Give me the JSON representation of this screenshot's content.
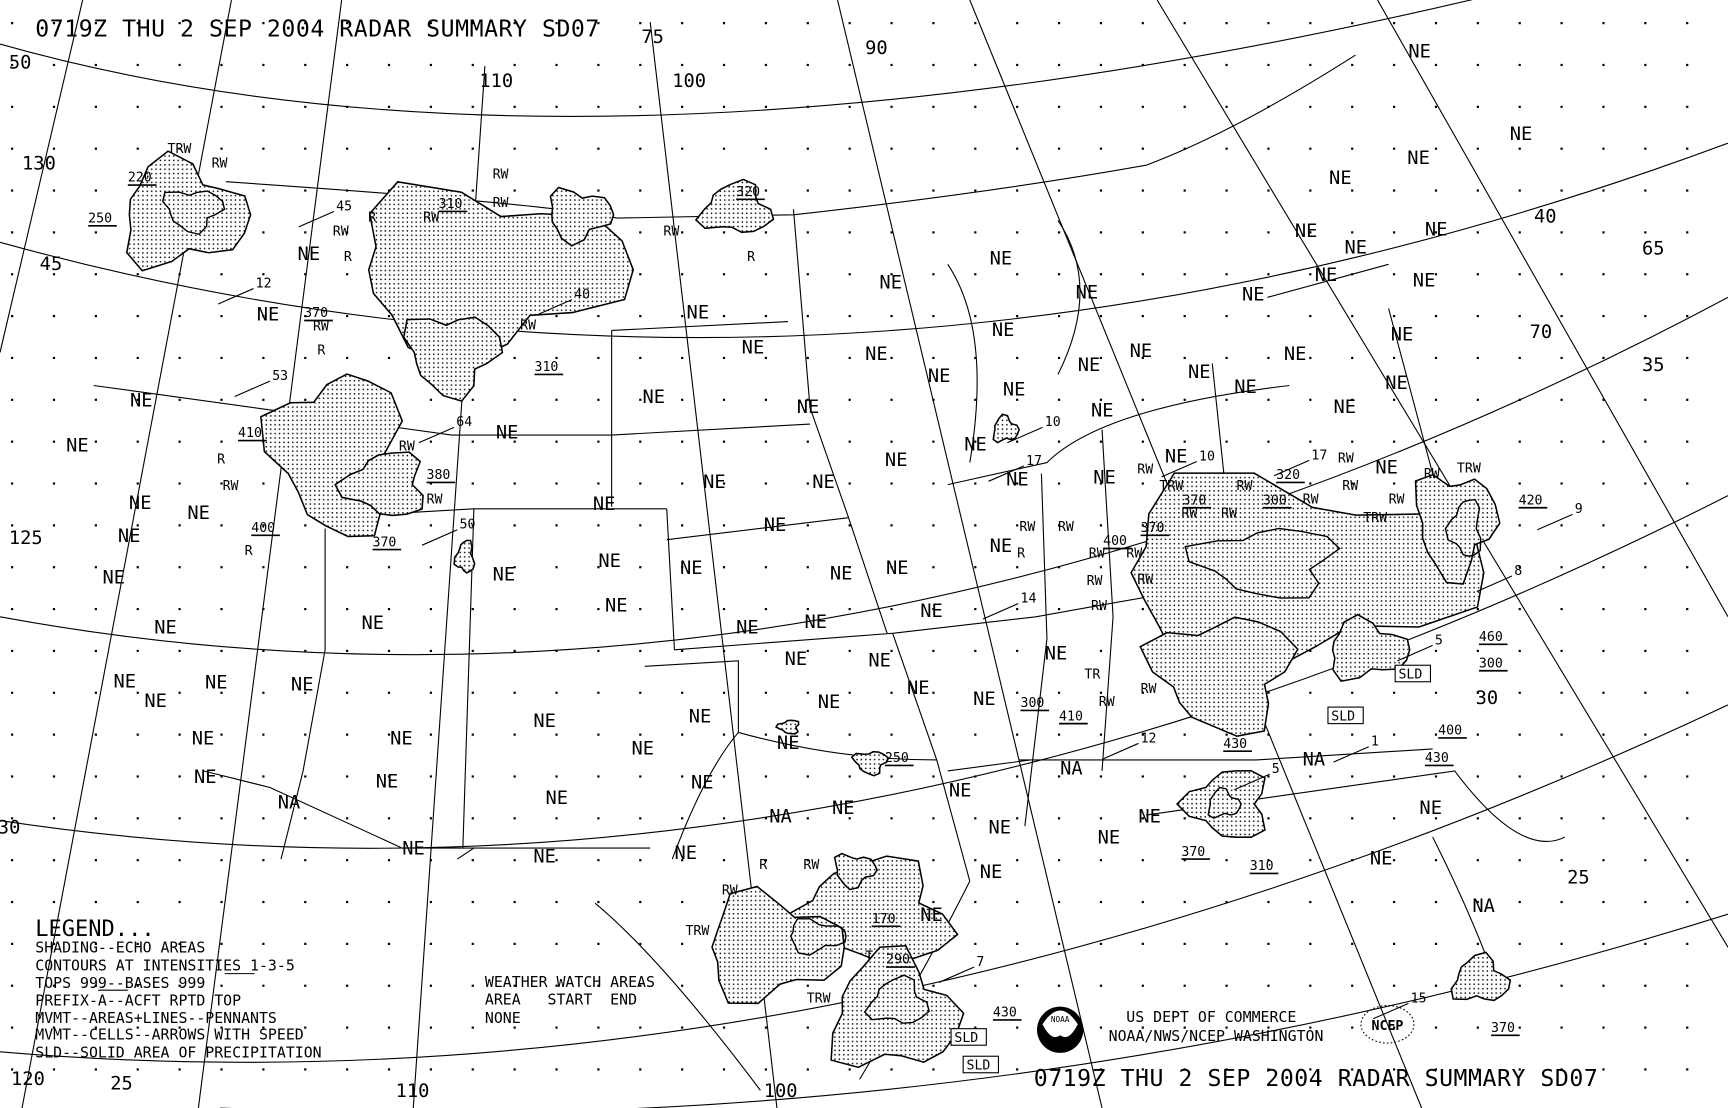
{
  "title": "0719Z THU  2 SEP 2004 RADAR SUMMARY SD07",
  "legend": {
    "heading": "LEGEND...",
    "lines": [
      "SHADING--ECHO AREAS",
      "CONTOURS AT INTENSITIES 1-3-5",
      "TOPS 999--BASES 999",
      "PREFIX-A--ACFT RPTD TOP",
      "MVMT--AREAS+LINES--PENNANTS",
      "MVMT--CELLS--ARROWS WITH SPEED",
      "SLD--SOLID AREA OF PRECIPITATION"
    ]
  },
  "watch": {
    "heading": "WEATHER WATCH AREAS",
    "columns": "AREA   START  END",
    "value": "NONE"
  },
  "agency": {
    "line1": "US DEPT OF COMMERCE",
    "line2": "NOAA/NWS/NCEP WASHINGTON"
  },
  "logos": {
    "noaa": "NOAA",
    "ncep": "NCEP"
  },
  "colors": {
    "ink": "#000000",
    "background": "#ffffff"
  },
  "map": {
    "state_labels": [
      "NE",
      "NE",
      "NE",
      "NE",
      "NE",
      "NE",
      "NE",
      "NE",
      "NE",
      "NE",
      "NE",
      "NE",
      "NE",
      "NE",
      "NE",
      "NE",
      "NE",
      "NE",
      "NE",
      "NE",
      "NE",
      "NE",
      "NE",
      "NE",
      "NE",
      "NE",
      "NE",
      "NE",
      "NE",
      "NE",
      "NE",
      "NE",
      "NE",
      "NE",
      "NE",
      "NE",
      "NE",
      "NE",
      "NE",
      "NE",
      "NE",
      "NE",
      "NE",
      "NE",
      "NE",
      "NE",
      "NE",
      "NE",
      "NE",
      "NE",
      "NE",
      "NE",
      "NE",
      "NE",
      "NE",
      "NE",
      "NE",
      "NE",
      "NE",
      "NE",
      "NE",
      "NE",
      "NE",
      "NE",
      "NE",
      "NE",
      "NE",
      "NE",
      "NE",
      "NE",
      "NE",
      "NE",
      "NE",
      "NE",
      "NE",
      "NE",
      "NE",
      "NE",
      "NE",
      "NE",
      "NE",
      "NE",
      "NE",
      "NE",
      "NE",
      "NE",
      "NE",
      "NE",
      "NE",
      "NE",
      "NE",
      "NE",
      "NE",
      "NA",
      "NA",
      "NA",
      "NA",
      "NA"
    ],
    "tops": [
      "220",
      "250",
      "370",
      "310",
      "320",
      "310",
      "410",
      "380",
      "400",
      "370",
      "320",
      "370",
      "300",
      "370",
      "400",
      "420",
      "460",
      "300",
      "400",
      "430",
      "430",
      "300",
      "410",
      "370",
      "310",
      "250",
      "170",
      "290",
      "430",
      "370"
    ],
    "speeds": [
      "45",
      "12",
      "40",
      "53",
      "64",
      "50",
      "10",
      "17",
      "10",
      "17",
      "14",
      "9",
      "8",
      "5",
      "12",
      "1",
      "5",
      "7",
      "15"
    ],
    "precip": [
      "TRW",
      "RW",
      "RW",
      "RW",
      "R",
      "RW",
      "RW",
      "R",
      "RW",
      "R",
      "RW",
      "RW",
      "R",
      "RW",
      "RW",
      "R",
      "RW",
      "R",
      "RW",
      "RW",
      "RW",
      "RW",
      "RW",
      "RW",
      "RW",
      "RW",
      "TRW",
      "RW",
      "RW",
      "RW",
      "TRW",
      "RW",
      "RW",
      "TRW",
      "TR",
      "RW",
      "RW",
      "R",
      "RW",
      "RW",
      "RW",
      "TRW",
      "RW",
      "T",
      "TRW",
      "R",
      "RW"
    ],
    "sld": [
      "SLD",
      "SLD",
      "SLD",
      "SLD"
    ],
    "grid_labels": [
      "50",
      "130",
      "45",
      "125",
      "120",
      "25",
      "110",
      "100",
      "90",
      "110",
      "100",
      "40",
      "65",
      "70",
      "35",
      "30",
      "25",
      "30",
      "75"
    ]
  }
}
